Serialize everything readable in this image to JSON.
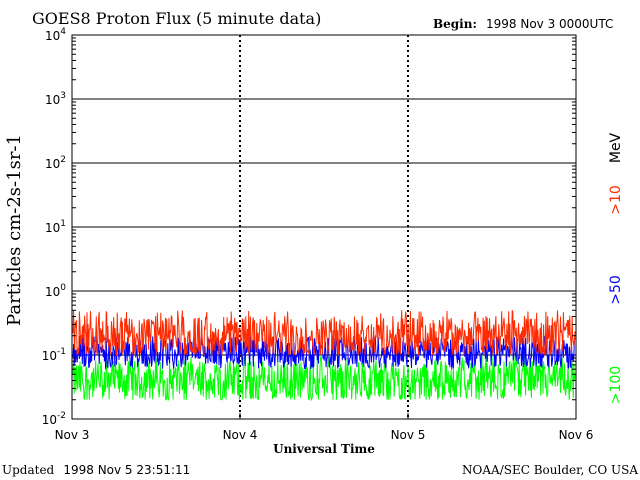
{
  "chart_data": {
    "type": "line",
    "title": "GOES8 Proton Flux (5 minute data)",
    "begin_label": "Begin:",
    "begin_value": "1998 Nov 3 0000UTC",
    "ylabel": "Particles cm-2s-1sr-1",
    "xlabel": "Universal Time",
    "y_scale": "log",
    "ylim": [
      0.01,
      10000
    ],
    "y_ticks": [
      {
        "base": "10",
        "exp": "-2"
      },
      {
        "base": "10",
        "exp": "-1"
      },
      {
        "base": "10",
        "exp": "0"
      },
      {
        "base": "10",
        "exp": "1"
      },
      {
        "base": "10",
        "exp": "2"
      },
      {
        "base": "10",
        "exp": "3"
      },
      {
        "base": "10",
        "exp": "4"
      }
    ],
    "x_ticks": [
      "Nov 3",
      "Nov 4",
      "Nov 5",
      "Nov 6"
    ],
    "x_range_days": [
      0,
      3
    ],
    "grid": true,
    "legend_position": "right-vertical",
    "unit_label": "MeV",
    "series": [
      {
        "name": ">10",
        "color": "#ff2a00",
        "typical": 0.2,
        "low": 0.1,
        "high": 0.5
      },
      {
        "name": ">50",
        "color": "#0000ff",
        "typical": 0.11,
        "low": 0.06,
        "high": 0.2
      },
      {
        "name": ">100",
        "color": "#00ff00",
        "typical": 0.04,
        "low": 0.02,
        "high": 0.1
      }
    ]
  },
  "footer": {
    "updated_label": "Updated",
    "updated_value": "1998 Nov  5 23:51:11",
    "source": "NOAA/SEC Boulder, CO USA"
  }
}
